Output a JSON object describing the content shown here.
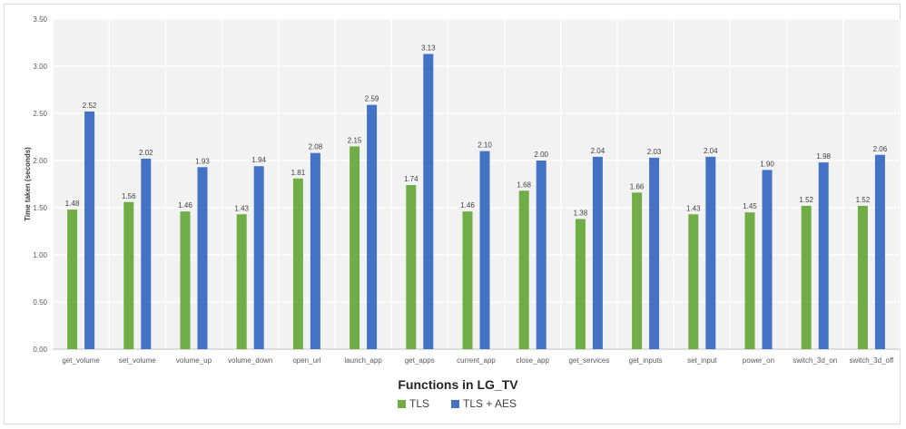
{
  "chart_data": {
    "type": "bar",
    "xlabel": "Functions in LG_TV",
    "ylabel": "Time taken (seconds)",
    "ylim": [
      0,
      3.5
    ],
    "yticks": [
      "0.00",
      "0.50",
      "1.00",
      "1.50",
      "2.00",
      "2.50",
      "3.00",
      "3.50"
    ],
    "grid": true,
    "legend_position": "bottom",
    "categories": [
      "get_volume",
      "set_volume",
      "volume_up",
      "volume_down",
      "open_url",
      "launch_app",
      "get_apps",
      "current_app",
      "close_app",
      "get_services",
      "get_inputs",
      "set_input",
      "power_on",
      "switch_3d_on",
      "switch_3d_off"
    ],
    "series": [
      {
        "name": "TLS",
        "color": "#70ad47",
        "values": [
          1.48,
          1.56,
          1.46,
          1.43,
          1.81,
          2.15,
          1.74,
          1.46,
          1.68,
          1.38,
          1.66,
          1.43,
          1.45,
          1.52,
          1.52
        ]
      },
      {
        "name": "TLS + AES",
        "color": "#4472c4",
        "values": [
          2.52,
          2.02,
          1.93,
          1.94,
          2.08,
          2.59,
          3.13,
          2.1,
          2.0,
          2.04,
          2.03,
          2.04,
          1.9,
          1.98,
          2.06
        ]
      }
    ]
  }
}
